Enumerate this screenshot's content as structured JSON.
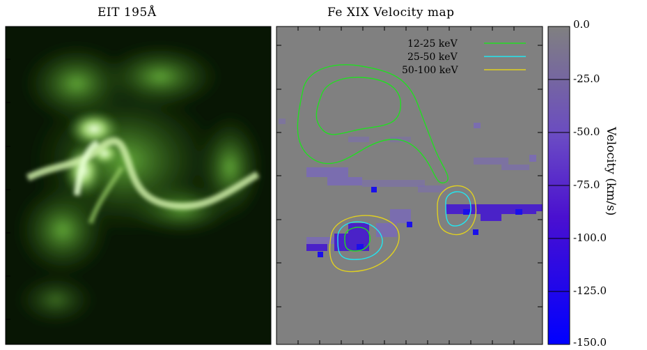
{
  "panels": {
    "left_title": "EIT 195Å",
    "right_title": "Fe XIX Velocity map"
  },
  "legend": [
    {
      "label": "12-25 keV",
      "color": "#22dd22"
    },
    {
      "label": "25-50 keV",
      "color": "#22e6f0"
    },
    {
      "label": "50-100 keV",
      "color": "#e0d020"
    }
  ],
  "colorbar": {
    "ticks": [
      "0.0",
      "-25.0",
      "-50.0",
      "-75.0",
      "-100.0",
      "-125.0",
      "-150.0"
    ],
    "label": "Velocity (km/s)",
    "range": [
      0,
      -150
    ],
    "color_top": "#808080",
    "color_bottom": "#0000ff"
  },
  "colors": {
    "background_gray": "#808080",
    "eit_green": "#a8e07a",
    "eit_dark": "#0a1a05"
  }
}
